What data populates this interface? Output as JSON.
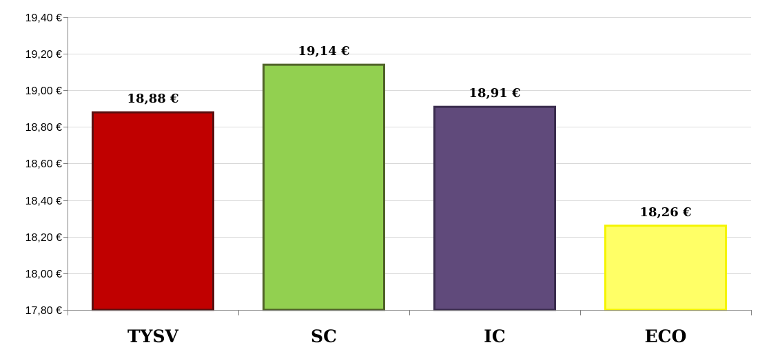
{
  "chart_data": {
    "type": "bar",
    "title": "",
    "xlabel": "",
    "ylabel": "",
    "categories": [
      "TYSV",
      "SC",
      "IC",
      "ECO"
    ],
    "values": [
      18.88,
      19.14,
      18.91,
      18.26
    ],
    "data_labels": [
      "18,88 €",
      "19,14 €",
      "18,91 €",
      "18,26 €"
    ],
    "bar_colors": [
      "#C00000",
      "#92D050",
      "#604A7B",
      "#FFFF66"
    ],
    "bar_border_colors": [
      "#5A1010",
      "#4F6228",
      "#3A2C4E",
      "#F4F400"
    ],
    "ylim": [
      17.8,
      19.4
    ],
    "yticks": [
      17.8,
      18.0,
      18.2,
      18.4,
      18.6,
      18.8,
      19.0,
      19.2,
      19.4
    ],
    "ytick_labels": [
      "17,80 €",
      "18,00 €",
      "18,20 €",
      "18,40 €",
      "18,60 €",
      "18,80 €",
      "19,00 €",
      "19,20 €",
      "19,40 €"
    ],
    "grid": true,
    "legend": "none",
    "gridline_color": "#D9D9D9",
    "axis_color": "#808080"
  }
}
